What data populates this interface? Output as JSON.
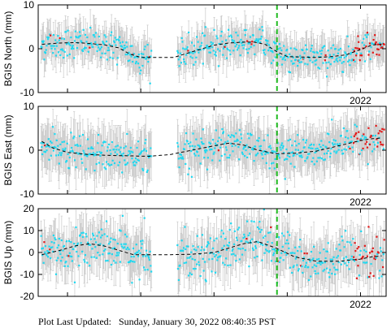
{
  "footer": {
    "label": "Plot Last Updated:",
    "value": "Sunday, January 30, 2022 08:40:35 PST"
  },
  "colors": {
    "points": "#1fd8f0",
    "recent_points": "#e21818",
    "error_bars": "#c8c8c8",
    "trend": "#000000",
    "marker_line": "#22bb22"
  },
  "chart_data": [
    {
      "type": "scatter",
      "ylabel": "BGIS North (mm)",
      "ylim": [
        -10,
        10
      ],
      "yticks": [
        "10",
        "0",
        "-10"
      ],
      "xlim": [
        2017.6,
        2022.35
      ],
      "xtick_label": "2022",
      "vertical_marker_x": 2020.86,
      "gap": [
        2019.15,
        2019.5
      ],
      "recent_start": 2021.9,
      "trend": {
        "x": [
          2017.65,
          2017.9,
          2018.1,
          2018.3,
          2018.5,
          2018.7,
          2018.85,
          2019.0,
          2019.2,
          2019.45,
          2019.6,
          2019.8,
          2020.0,
          2020.2,
          2020.4,
          2020.55,
          2020.7,
          2020.85,
          2021.0,
          2021.2,
          2021.4,
          2021.6,
          2021.8,
          2022.0,
          2022.15,
          2022.3
        ],
        "y": [
          1.0,
          1.3,
          1.4,
          1.2,
          0.9,
          0.2,
          -1.2,
          -2.0,
          -2.0,
          -2.0,
          -1.2,
          -0.2,
          0.8,
          1.3,
          1.5,
          1.5,
          1.0,
          -0.6,
          -1.8,
          -1.9,
          -2.0,
          -1.8,
          -1.4,
          -0.2,
          0.8,
          1.1
        ]
      },
      "noise_sd": 1.7,
      "error_bar": 3.5
    },
    {
      "type": "scatter",
      "ylabel": "BGIS East (mm)",
      "ylim": [
        -10,
        10
      ],
      "yticks": [
        "10",
        "0",
        "-10"
      ],
      "xlim": [
        2017.6,
        2022.35
      ],
      "xtick_label": "2022",
      "vertical_marker_x": 2020.86,
      "gap": [
        2019.15,
        2019.5
      ],
      "recent_start": 2021.9,
      "trend": {
        "x": [
          2017.65,
          2017.8,
          2018.0,
          2018.3,
          2018.6,
          2018.9,
          2019.1,
          2019.4,
          2019.7,
          2020.0,
          2020.2,
          2020.4,
          2020.6,
          2020.85,
          2021.1,
          2021.4,
          2021.7,
          2022.0,
          2022.15,
          2022.3
        ],
        "y": [
          2.0,
          0.5,
          -0.5,
          -1.0,
          -1.2,
          -1.3,
          -1.4,
          -1.0,
          0.0,
          1.0,
          1.6,
          1.2,
          0.0,
          -0.8,
          -0.7,
          -0.2,
          1.0,
          2.2,
          2.6,
          2.8
        ]
      },
      "noise_sd": 1.8,
      "error_bar": 4.5
    },
    {
      "type": "scatter",
      "ylabel": "BGIS Up (mm)",
      "ylim": [
        -20,
        20
      ],
      "yticks": [
        "20",
        "10",
        "0",
        "-10",
        "-20"
      ],
      "xlim": [
        2017.6,
        2022.35
      ],
      "xtick_label": "2022",
      "vertical_marker_x": 2020.86,
      "gap": [
        2019.15,
        2019.5
      ],
      "recent_start": 2021.9,
      "trend": {
        "x": [
          2017.65,
          2017.9,
          2018.1,
          2018.3,
          2018.5,
          2018.7,
          2018.9,
          2019.1,
          2019.4,
          2019.7,
          2020.0,
          2020.2,
          2020.4,
          2020.6,
          2020.85,
          2021.1,
          2021.4,
          2021.7,
          2022.0,
          2022.15,
          2022.3
        ],
        "y": [
          -1.0,
          1.0,
          3.0,
          4.0,
          3.0,
          1.0,
          -1.0,
          -1.0,
          -1.0,
          -0.8,
          0.0,
          2.0,
          4.0,
          5.0,
          2.0,
          -2.0,
          -4.0,
          -4.0,
          -3.0,
          -2.0,
          -1.5
        ]
      },
      "noise_sd": 5.0,
      "error_bar": 9.0
    }
  ]
}
